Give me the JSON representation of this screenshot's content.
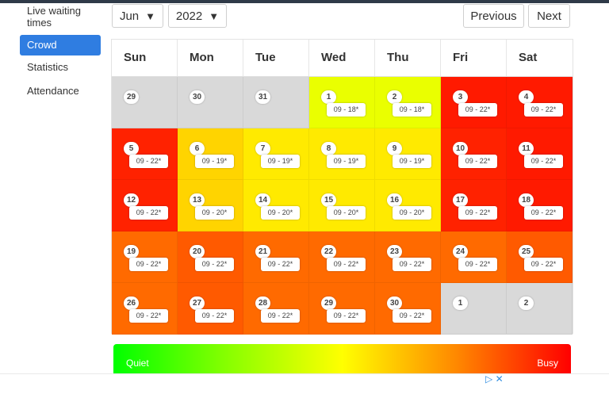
{
  "sidebar": {
    "items": [
      {
        "label": "Live waiting times",
        "active": false
      },
      {
        "label": "Crowd calendar",
        "active": true
      },
      {
        "label": "Statistics",
        "active": false
      },
      {
        "label": "Attendance",
        "active": false
      }
    ]
  },
  "controls": {
    "month": "Jun",
    "year": "2022",
    "previous": "Previous",
    "next": "Next",
    "dropdown_arrow": "▼"
  },
  "calendar": {
    "weekdays": [
      "Sun",
      "Mon",
      "Tue",
      "Wed",
      "Thu",
      "Fri",
      "Sat"
    ],
    "weeks": [
      [
        {
          "day": "29",
          "hours": "",
          "color": "#d9d9d9"
        },
        {
          "day": "30",
          "hours": "",
          "color": "#d9d9d9"
        },
        {
          "day": "31",
          "hours": "",
          "color": "#d9d9d9"
        },
        {
          "day": "1",
          "hours": "09 - 18*",
          "color": "#eaff00"
        },
        {
          "day": "2",
          "hours": "09 - 18*",
          "color": "#eaff00"
        },
        {
          "day": "3",
          "hours": "09 - 22*",
          "color": "#ff1a00"
        },
        {
          "day": "4",
          "hours": "09 - 22*",
          "color": "#ff1a00"
        }
      ],
      [
        {
          "day": "5",
          "hours": "09 - 22*",
          "color": "#ff2200"
        },
        {
          "day": "6",
          "hours": "09 - 19*",
          "color": "#ffd400"
        },
        {
          "day": "7",
          "hours": "09 - 19*",
          "color": "#ffea00"
        },
        {
          "day": "8",
          "hours": "09 - 19*",
          "color": "#ffea00"
        },
        {
          "day": "9",
          "hours": "09 - 19*",
          "color": "#ffea00"
        },
        {
          "day": "10",
          "hours": "09 - 22*",
          "color": "#ff2200"
        },
        {
          "day": "11",
          "hours": "09 - 22*",
          "color": "#ff1a00"
        }
      ],
      [
        {
          "day": "12",
          "hours": "09 - 22*",
          "color": "#ff2200"
        },
        {
          "day": "13",
          "hours": "09 - 20*",
          "color": "#ffd400"
        },
        {
          "day": "14",
          "hours": "09 - 20*",
          "color": "#ffea00"
        },
        {
          "day": "15",
          "hours": "09 - 20*",
          "color": "#ffea00"
        },
        {
          "day": "16",
          "hours": "09 - 20*",
          "color": "#ffea00"
        },
        {
          "day": "17",
          "hours": "09 - 22*",
          "color": "#ff2200"
        },
        {
          "day": "18",
          "hours": "09 - 22*",
          "color": "#ff1a00"
        }
      ],
      [
        {
          "day": "19",
          "hours": "09 - 22*",
          "color": "#ff6a00"
        },
        {
          "day": "20",
          "hours": "09 - 22*",
          "color": "#ff5a00"
        },
        {
          "day": "21",
          "hours": "09 - 22*",
          "color": "#ff6a00"
        },
        {
          "day": "22",
          "hours": "09 - 22*",
          "color": "#ff6a00"
        },
        {
          "day": "23",
          "hours": "09 - 22*",
          "color": "#ff6a00"
        },
        {
          "day": "24",
          "hours": "09 - 22*",
          "color": "#ff6a00"
        },
        {
          "day": "25",
          "hours": "09 - 22*",
          "color": "#ff5a00"
        }
      ],
      [
        {
          "day": "26",
          "hours": "09 - 22*",
          "color": "#ff6a00"
        },
        {
          "day": "27",
          "hours": "09 - 22*",
          "color": "#ff5a00"
        },
        {
          "day": "28",
          "hours": "09 - 22*",
          "color": "#ff6a00"
        },
        {
          "day": "29",
          "hours": "09 - 22*",
          "color": "#ff6a00"
        },
        {
          "day": "30",
          "hours": "09 - 22*",
          "color": "#ff6a00"
        },
        {
          "day": "1",
          "hours": "",
          "color": "#d9d9d9"
        },
        {
          "day": "2",
          "hours": "",
          "color": "#d9d9d9"
        }
      ]
    ]
  },
  "legend": {
    "quiet": "Quiet",
    "busy": "Busy"
  },
  "ad": {
    "play_glyph": "▷",
    "close_glyph": "✕"
  }
}
